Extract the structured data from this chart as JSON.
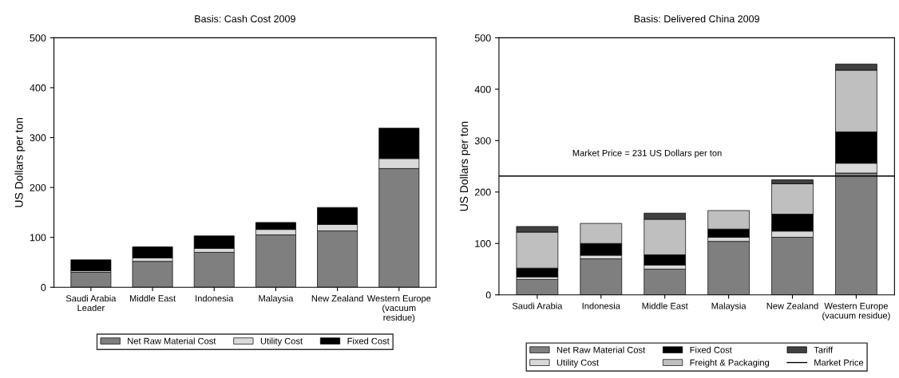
{
  "chart_data": [
    {
      "type": "bar",
      "stacked": true,
      "title": "Basis: Cash Cost 2009",
      "ylabel": "US Dollars per ton",
      "categories": [
        "Saudi Arabia\nLeader",
        "Middle East",
        "Indonesia",
        "Malaysia",
        "New Zealand",
        "Western Europe\n(vacuum\nresidue)"
      ],
      "series": [
        {
          "name": "Net Raw Material Cost",
          "color": "#7f7f7f",
          "values": [
            30,
            52,
            70,
            105,
            113,
            238
          ]
        },
        {
          "name": "Utility Cost",
          "color": "#d9d9d9",
          "values": [
            3,
            7,
            8,
            11,
            13,
            20
          ]
        },
        {
          "name": "Fixed Cost",
          "color": "#000000",
          "values": [
            22,
            22,
            25,
            14,
            34,
            61
          ]
        }
      ],
      "ylim": [
        0,
        500
      ],
      "yticks": [
        0,
        100,
        200,
        300,
        400,
        500
      ],
      "grid": false,
      "legend": "bottom"
    },
    {
      "type": "bar",
      "stacked": true,
      "title": "Basis: Delivered China 2009",
      "ylabel": "US Dollars per ton",
      "categories": [
        "Saudi Arabia",
        "Indonesia",
        "Middle East",
        "Malaysia",
        "New Zealand",
        "Western Europe\n(vacuum residue)"
      ],
      "series": [
        {
          "name": "Net Raw Material Cost",
          "color": "#7f7f7f",
          "values": [
            30,
            70,
            50,
            104,
            112,
            237
          ]
        },
        {
          "name": "Utility Cost",
          "color": "#d9d9d9",
          "values": [
            5,
            7,
            8,
            8,
            12,
            19
          ]
        },
        {
          "name": "Fixed Cost",
          "color": "#000000",
          "values": [
            17,
            23,
            20,
            16,
            33,
            61
          ]
        },
        {
          "name": "Freight & Packaging",
          "color": "#bfbfbf",
          "values": [
            70,
            39,
            69,
            36,
            59,
            120
          ]
        },
        {
          "name": "Tariff",
          "color": "#404040",
          "values": [
            11,
            null,
            12,
            null,
            8,
            12
          ]
        }
      ],
      "ref_lines": [
        {
          "axis": "y",
          "value": 231,
          "label": "Market Price",
          "color": "#000000"
        }
      ],
      "annotations": [
        "Market Price = 231 US Dollars per ton"
      ],
      "ylim": [
        0,
        500
      ],
      "yticks": [
        0,
        100,
        200,
        300,
        400,
        500
      ],
      "grid": false,
      "legend": "bottom"
    }
  ]
}
